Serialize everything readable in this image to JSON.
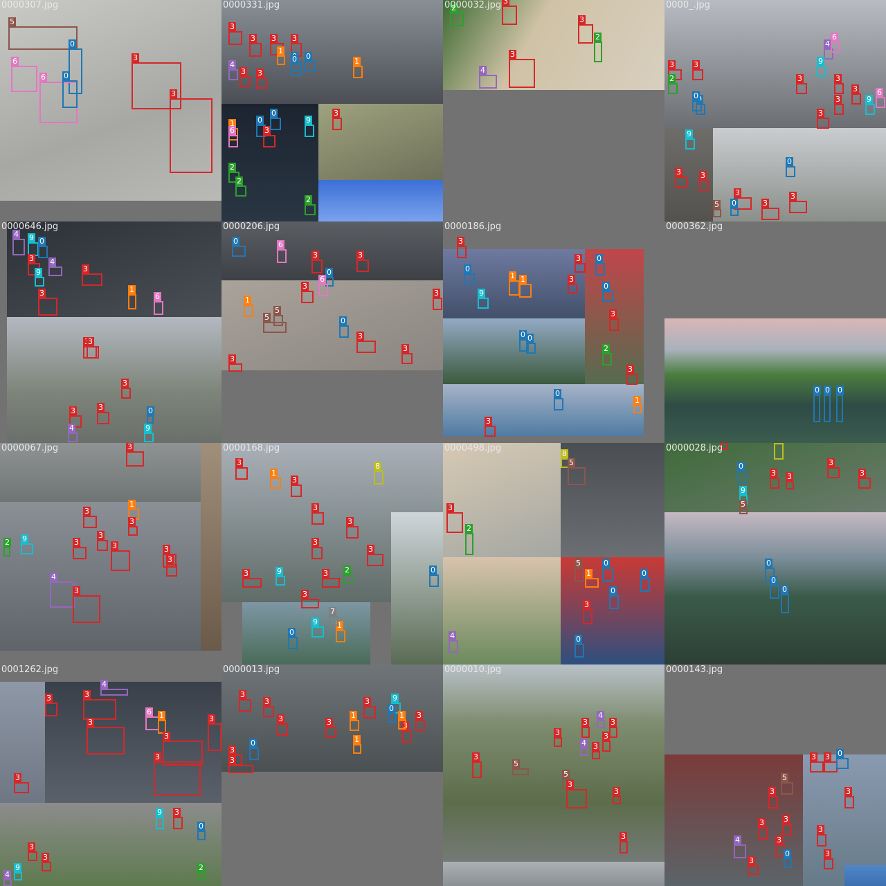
{
  "class_colors": {
    "0": "#1f77b4",
    "1": "#ff7f0e",
    "2": "#2ca02c",
    "3": "#d62728",
    "4": "#9467bd",
    "5": "#8c564b",
    "6": "#e377c2",
    "7": "#7f7f7f",
    "8": "#bcbd22",
    "9": "#17becf"
  },
  "tiles": [
    {
      "filename": "0000307.jpg",
      "labels": [
        "5",
        "0",
        "6",
        "6",
        "0",
        "3",
        "3"
      ]
    },
    {
      "filename": "0000331.jpg",
      "labels": [
        "3",
        "3",
        "3",
        "3",
        "1",
        "0",
        "0",
        "4",
        "3",
        "3",
        "0",
        "1",
        "9",
        "3",
        "1",
        "2",
        "2",
        "6",
        "3",
        "0",
        "0",
        "2"
      ]
    },
    {
      "filename": "0000032.jpg",
      "labels": [
        "2",
        "3",
        "3",
        "2",
        "4",
        "3"
      ]
    },
    {
      "filename": "0000_.jpg",
      "labels": [
        "3",
        "3",
        "3",
        "4",
        "9",
        "6",
        "3",
        "3",
        "9",
        "6",
        "3",
        "0",
        "0",
        "2",
        "3",
        "3",
        "9",
        "3",
        "0",
        "3",
        "3",
        "3",
        "5",
        "0"
      ]
    },
    {
      "filename": "0000646.jpg",
      "labels": [
        "4",
        "9",
        "0",
        "3",
        "3",
        "4",
        "3",
        "9",
        "1",
        "6",
        "3",
        "3",
        "3",
        "0",
        "3",
        "3",
        "4",
        "9"
      ]
    },
    {
      "filename": "0000206.jpg",
      "labels": [
        "0",
        "6",
        "3",
        "3",
        "1",
        "5",
        "0",
        "3",
        "6",
        "3",
        "5",
        "3",
        "0",
        "3",
        "3"
      ]
    },
    {
      "filename": "0000186.jpg",
      "labels": [
        "3",
        "0",
        "9",
        "1",
        "1",
        "3",
        "0",
        "0",
        "3",
        "0",
        "2",
        "3",
        "3",
        "0",
        "0",
        "3",
        "1"
      ]
    },
    {
      "filename": "0000362.jpg",
      "labels": [
        "0",
        "0",
        "0"
      ]
    },
    {
      "filename": "0000067.jpg",
      "labels": [
        "3",
        "3",
        "1",
        "3",
        "9",
        "3",
        "3",
        "4",
        "3",
        "2",
        "3",
        "3",
        "3"
      ]
    },
    {
      "filename": "0000168.jpg",
      "labels": [
        "3",
        "1",
        "3",
        "8",
        "3",
        "3",
        "3",
        "9",
        "2",
        "0",
        "3",
        "3",
        "9",
        "1",
        "7",
        "0",
        "3",
        "3"
      ]
    },
    {
      "filename": "0000498.jpg",
      "labels": [
        "8",
        "5",
        "3",
        "2",
        "1",
        "0",
        "0",
        "3",
        "5",
        "0",
        "0",
        "4"
      ]
    },
    {
      "filename": "0000028.jpg",
      "labels": [
        "3",
        "8",
        "3",
        "3",
        "0",
        "3",
        "3",
        "9",
        "5",
        "0",
        "0",
        "0"
      ]
    },
    {
      "filename": "0001262.jpg",
      "labels": [
        "4",
        "3",
        "3",
        "6",
        "1",
        "3",
        "3",
        "3",
        "3",
        "3",
        "9",
        "3",
        "0",
        "3",
        "3",
        "2",
        "4",
        "9"
      ]
    },
    {
      "filename": "0000013.jpg",
      "labels": [
        "3",
        "3",
        "3",
        "0",
        "9",
        "3",
        "3",
        "1",
        "1",
        "3",
        "3",
        "3",
        "0",
        "3",
        "1"
      ]
    },
    {
      "filename": "0000010.jpg",
      "labels": [
        "3",
        "3",
        "4",
        "3",
        "3",
        "5",
        "4",
        "3",
        "3",
        "5",
        "3",
        "3",
        "3"
      ]
    },
    {
      "filename": "0000143.jpg",
      "labels": [
        "3",
        "3",
        "0",
        "3",
        "5",
        "3",
        "3",
        "3",
        "3",
        "0",
        "3",
        "4",
        "3",
        "3"
      ]
    }
  ]
}
